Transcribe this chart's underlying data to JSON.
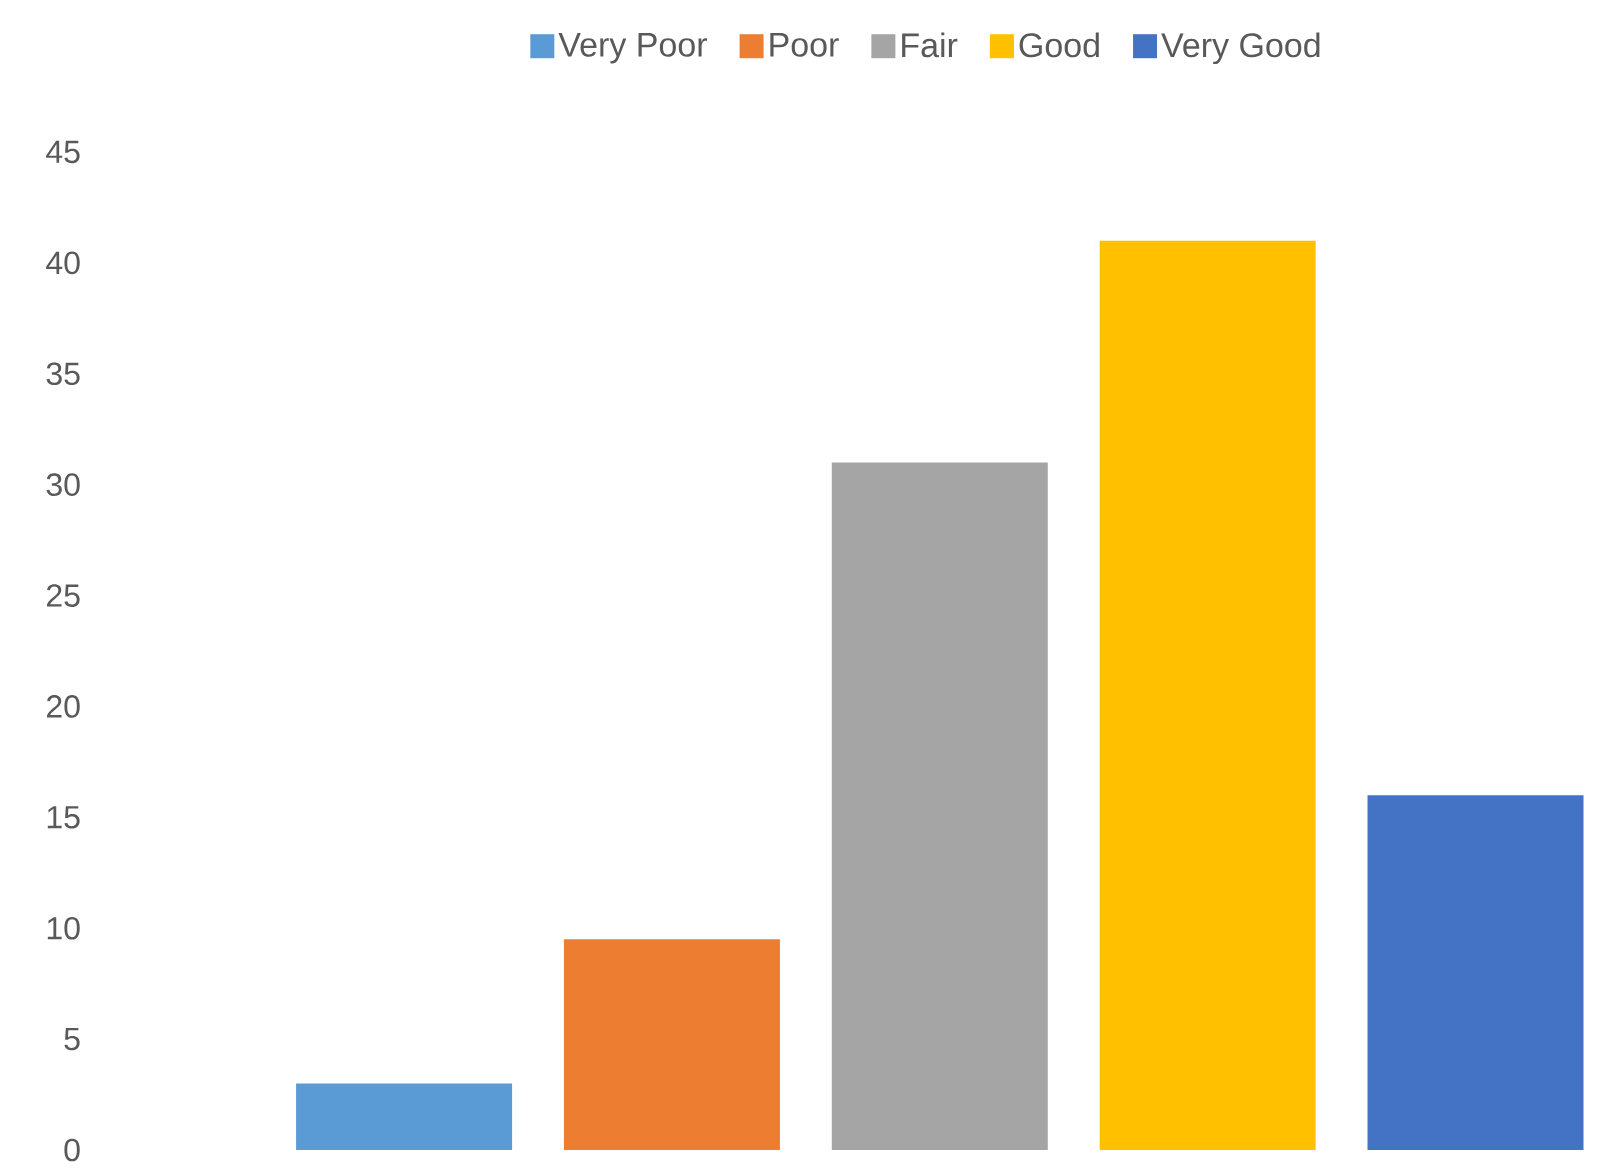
{
  "chart_data": {
    "type": "bar",
    "stacked": true,
    "categories": [
      null,
      null,
      null,
      null,
      null
    ],
    "series": [
      {
        "name": "Very Poor",
        "color": "#5b9bd5",
        "values": [
          3,
          null,
          null,
          null,
          null
        ]
      },
      {
        "name": "Poor",
        "color": "#ed7d31",
        "values": [
          null,
          9.5,
          null,
          null,
          null
        ]
      },
      {
        "name": "Fair",
        "color": "#a5a5a5",
        "values": [
          null,
          null,
          31,
          null,
          null
        ]
      },
      {
        "name": "Good",
        "color": "#ffc000",
        "values": [
          null,
          null,
          null,
          41,
          null
        ]
      },
      {
        "name": "Very Good",
        "color": "#4472c4",
        "values": [
          null,
          null,
          null,
          null,
          16
        ]
      }
    ],
    "ylim": [
      0,
      45
    ],
    "yticks": [
      0,
      5,
      10,
      15,
      20,
      25,
      30,
      35,
      40,
      45
    ],
    "legend": "top",
    "tick_labels": "y"
  }
}
